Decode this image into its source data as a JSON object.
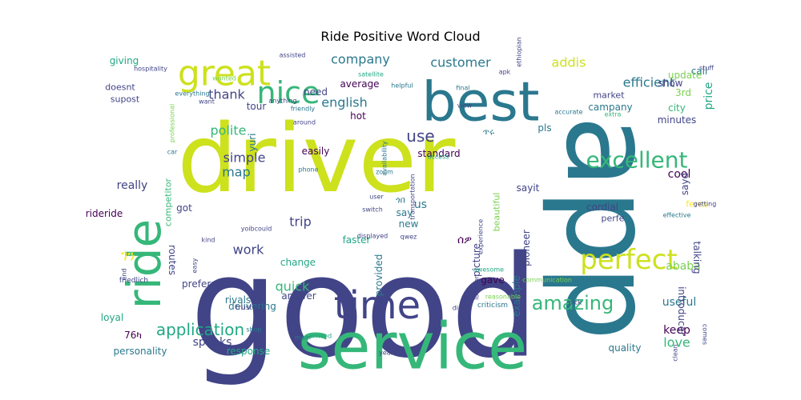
{
  "chart_data": {
    "type": "wordcloud",
    "title": "Ride Positive Word Cloud",
    "colormap": "viridis",
    "background": "#ffffff",
    "words": [
      {
        "text": "good",
        "size": 175,
        "color": "#414487"
      },
      {
        "text": "driver",
        "size": 118,
        "color": "#cde11d"
      },
      {
        "text": "app",
        "size": 150,
        "color": "#2a788e",
        "rotate": 90
      },
      {
        "text": "service",
        "size": 80,
        "color": "#35b779"
      },
      {
        "text": "best",
        "size": 68,
        "color": "#2a788e"
      },
      {
        "text": "ride",
        "size": 58,
        "color": "#35b779",
        "rotate": -90
      },
      {
        "text": "great",
        "size": 44,
        "color": "#cde11d"
      },
      {
        "text": "time",
        "size": 48,
        "color": "#414487"
      },
      {
        "text": "nice",
        "size": 38,
        "color": "#35b779"
      },
      {
        "text": "perfect",
        "size": 34,
        "color": "#cde11d"
      },
      {
        "text": "excellent",
        "size": 28,
        "color": "#35b779"
      },
      {
        "text": "amazing",
        "size": 24,
        "color": "#35b779"
      },
      {
        "text": "application",
        "size": 20,
        "color": "#22a884"
      },
      {
        "text": "customer",
        "size": 16,
        "color": "#2a788e"
      },
      {
        "text": "company",
        "size": 16,
        "color": "#2a788e"
      },
      {
        "text": "efficient",
        "size": 16,
        "color": "#2a788e"
      },
      {
        "text": "addis",
        "size": 16,
        "color": "#cde11d"
      },
      {
        "text": "thank",
        "size": 16,
        "color": "#414487"
      },
      {
        "text": "english",
        "size": 16,
        "color": "#2a788e"
      },
      {
        "text": "use",
        "size": 20,
        "color": "#414487"
      },
      {
        "text": "polite",
        "size": 16,
        "color": "#35b779"
      },
      {
        "text": "simple",
        "size": 16,
        "color": "#414487"
      },
      {
        "text": "map",
        "size": 16,
        "color": "#2a788e"
      },
      {
        "text": "really",
        "size": 14,
        "color": "#414487"
      },
      {
        "text": "cool",
        "size": 14,
        "color": "#440154"
      },
      {
        "text": "trip",
        "size": 16,
        "color": "#414487"
      },
      {
        "text": "work",
        "size": 16,
        "color": "#414487"
      },
      {
        "text": "quick",
        "size": 16,
        "color": "#35b779"
      },
      {
        "text": "speaks",
        "size": 14,
        "color": "#414487"
      },
      {
        "text": "love",
        "size": 16,
        "color": "#35b779"
      },
      {
        "text": "keep",
        "size": 14,
        "color": "#440154"
      },
      {
        "text": "ababa",
        "size": 14,
        "color": "#7ad151"
      },
      {
        "text": "useful",
        "size": 14,
        "color": "#2a788e"
      },
      {
        "text": "price",
        "size": 14,
        "color": "#22a884",
        "rotate": -90
      },
      {
        "text": "personality",
        "size": 12,
        "color": "#2a788e"
      },
      {
        "text": "response",
        "size": 12,
        "color": "#22a884"
      },
      {
        "text": "delivering",
        "size": 12,
        "color": "#2a788e"
      },
      {
        "text": "answer",
        "size": 12,
        "color": "#414487"
      },
      {
        "text": "change",
        "size": 12,
        "color": "#22a884"
      },
      {
        "text": "standard",
        "size": 12,
        "color": "#440154"
      },
      {
        "text": "easily",
        "size": 12,
        "color": "#440154"
      },
      {
        "text": "hot",
        "size": 12,
        "color": "#440154"
      },
      {
        "text": "average",
        "size": 12,
        "color": "#440154"
      },
      {
        "text": "need",
        "size": 12,
        "color": "#414487"
      },
      {
        "text": "tour",
        "size": 12,
        "color": "#414487"
      },
      {
        "text": "giving",
        "size": 12,
        "color": "#22a884"
      },
      {
        "text": "doesnt",
        "size": 11,
        "color": "#414487"
      },
      {
        "text": "supost",
        "size": 11,
        "color": "#414487"
      },
      {
        "text": "minutes",
        "size": 12,
        "color": "#414487"
      },
      {
        "text": "city",
        "size": 12,
        "color": "#35b779"
      },
      {
        "text": "campany",
        "size": 12,
        "color": "#2a788e"
      },
      {
        "text": "market",
        "size": 11,
        "color": "#414487"
      },
      {
        "text": "show",
        "size": 12,
        "color": "#414487"
      },
      {
        "text": "call",
        "size": 12,
        "color": "#2a788e"
      },
      {
        "text": "update",
        "size": 12,
        "color": "#7ad151"
      },
      {
        "text": "3rd",
        "size": 12,
        "color": "#7ad151"
      },
      {
        "text": "pls",
        "size": 12,
        "color": "#2a788e"
      },
      {
        "text": "sayd",
        "size": 12,
        "color": "#414487",
        "rotate": -90
      },
      {
        "text": "cordial",
        "size": 12,
        "color": "#414487"
      },
      {
        "text": "perfe",
        "size": 11,
        "color": "#414487"
      },
      {
        "text": "feres",
        "size": 11,
        "color": "#fde725"
      },
      {
        "text": "talking",
        "size": 12,
        "color": "#414487",
        "rotate": 90
      },
      {
        "text": "introducer",
        "size": 12,
        "color": "#414487",
        "rotate": 90
      },
      {
        "text": "quality",
        "size": 12,
        "color": "#2a788e"
      },
      {
        "text": "sayit",
        "size": 12,
        "color": "#414487"
      },
      {
        "text": "pioneer",
        "size": 12,
        "color": "#414487",
        "rotate": -90
      },
      {
        "text": "example",
        "size": 12,
        "color": "#2a788e",
        "rotate": -90
      },
      {
        "text": "beautiful",
        "size": 11,
        "color": "#7ad151",
        "rotate": -90
      },
      {
        "text": "picture",
        "size": 12,
        "color": "#414487",
        "rotate": -90
      },
      {
        "text": "us",
        "size": 14,
        "color": "#2a788e"
      },
      {
        "text": "say",
        "size": 12,
        "color": "#2a788e"
      },
      {
        "text": "new",
        "size": 12,
        "color": "#2a788e"
      },
      {
        "text": "faster",
        "size": 12,
        "color": "#22a884"
      },
      {
        "text": "provided",
        "size": 12,
        "color": "#2a788e",
        "rotate": -90
      },
      {
        "text": "gave",
        "size": 12,
        "color": "#440154"
      },
      {
        "text": "preferable",
        "size": 12,
        "color": "#414487"
      },
      {
        "text": "loyal",
        "size": 12,
        "color": "#22a884"
      },
      {
        "text": "got",
        "size": 12,
        "color": "#414487"
      },
      {
        "text": "routes",
        "size": 12,
        "color": "#414487",
        "rotate": 90
      },
      {
        "text": "competitor",
        "size": 11,
        "color": "#35b779",
        "rotate": -90
      },
      {
        "text": "rideride",
        "size": 12,
        "color": "#440154"
      },
      {
        "text": "yuri",
        "size": 12,
        "color": "#2a788e",
        "rotate": -90
      },
      {
        "text": "rivals",
        "size": 12,
        "color": "#2a788e"
      },
      {
        "text": "76ካ",
        "size": 12,
        "color": "#440154"
      },
      {
        "text": "friedlich",
        "size": 9,
        "color": "#414487"
      },
      {
        "text": "trusted",
        "size": 9,
        "color": "#414487"
      },
      {
        "text": "shop",
        "size": 8,
        "color": "#2a788e"
      },
      {
        "text": "main",
        "size": 8,
        "color": "#2a788e"
      },
      {
        "text": "arrived",
        "size": 8,
        "color": "#22a884"
      },
      {
        "text": "years",
        "size": 8,
        "color": "#414487"
      },
      {
        "text": "didnt",
        "size": 8,
        "color": "#414487"
      },
      {
        "text": "criticism",
        "size": 9,
        "color": "#2a788e"
      },
      {
        "text": "reasonable",
        "size": 8,
        "color": "#7ad151"
      },
      {
        "text": "communication",
        "size": 8,
        "color": "#7ad151"
      },
      {
        "text": "pick",
        "size": 8,
        "color": "#414487"
      },
      {
        "text": "comes",
        "size": 8,
        "color": "#414487",
        "rotate": 90
      },
      {
        "text": "clean",
        "size": 8,
        "color": "#414487",
        "rotate": -90
      },
      {
        "text": "effective",
        "size": 8,
        "color": "#2a788e"
      },
      {
        "text": "getting",
        "size": 8,
        "color": "#414487"
      },
      {
        "text": "view",
        "size": 8,
        "color": "#414487"
      },
      {
        "text": "helpful",
        "size": 8,
        "color": "#2a788e"
      },
      {
        "text": "final",
        "size": 8,
        "color": "#2a788e"
      },
      {
        "text": "apk",
        "size": 8,
        "color": "#414487"
      },
      {
        "text": "ethiopian",
        "size": 8,
        "color": "#414487",
        "rotate": -90
      },
      {
        "text": "stuff",
        "size": 8,
        "color": "#414487"
      },
      {
        "text": "extra",
        "size": 8,
        "color": "#35b779"
      },
      {
        "text": "access",
        "size": 8,
        "color": "#22a884"
      },
      {
        "text": "accurate",
        "size": 8,
        "color": "#2a788e"
      },
      {
        "text": "availability",
        "size": 8,
        "color": "#2a788e",
        "rotate": -90
      },
      {
        "text": "zoom",
        "size": 8,
        "color": "#2a788e"
      },
      {
        "text": "phone",
        "size": 8,
        "color": "#2a788e"
      },
      {
        "text": "user",
        "size": 8,
        "color": "#414487"
      },
      {
        "text": "switch",
        "size": 8,
        "color": "#414487"
      },
      {
        "text": "qwez",
        "size": 8,
        "color": "#414487"
      },
      {
        "text": "awesome",
        "size": 8,
        "color": "#22a884"
      },
      {
        "text": "experience",
        "size": 8,
        "color": "#414487",
        "rotate": -90
      },
      {
        "text": "location",
        "size": 8,
        "color": "#414487",
        "rotate": -90
      },
      {
        "text": "displayed",
        "size": 8,
        "color": "#414487"
      },
      {
        "text": "transportation",
        "size": 8,
        "color": "#414487",
        "rotate": -90
      },
      {
        "text": "yoibcould",
        "size": 8,
        "color": "#414487"
      },
      {
        "text": "easy",
        "size": 8,
        "color": "#414487",
        "rotate": -90
      },
      {
        "text": "end",
        "size": 8,
        "color": "#414487",
        "rotate": -90
      },
      {
        "text": "car",
        "size": 8,
        "color": "#2a788e"
      },
      {
        "text": "professional",
        "size": 8,
        "color": "#7ad151",
        "rotate": -90
      },
      {
        "text": "want",
        "size": 8,
        "color": "#414487"
      },
      {
        "text": "everything",
        "size": 8,
        "color": "#2a788e"
      },
      {
        "text": "wanted",
        "size": 8,
        "color": "#7ad151"
      },
      {
        "text": "hospitality",
        "size": 8,
        "color": "#414487"
      },
      {
        "text": "assisted",
        "size": 8,
        "color": "#414487"
      },
      {
        "text": "satellite",
        "size": 8,
        "color": "#22a884"
      },
      {
        "text": "anything",
        "size": 8,
        "color": "#414487"
      },
      {
        "text": "friendly",
        "size": 8,
        "color": "#2a788e"
      },
      {
        "text": "around",
        "size": 8,
        "color": "#414487"
      },
      {
        "text": "kind",
        "size": 8,
        "color": "#414487"
      },
      {
        "text": "ገን",
        "size": 18,
        "color": "#fde725"
      },
      {
        "text": "ሰዎ",
        "size": 14,
        "color": "#440154"
      },
      {
        "text": "ጥሩ",
        "size": 11,
        "color": "#2a788e"
      },
      {
        "text": "ጎበ",
        "size": 11,
        "color": "#2a788e"
      }
    ]
  }
}
